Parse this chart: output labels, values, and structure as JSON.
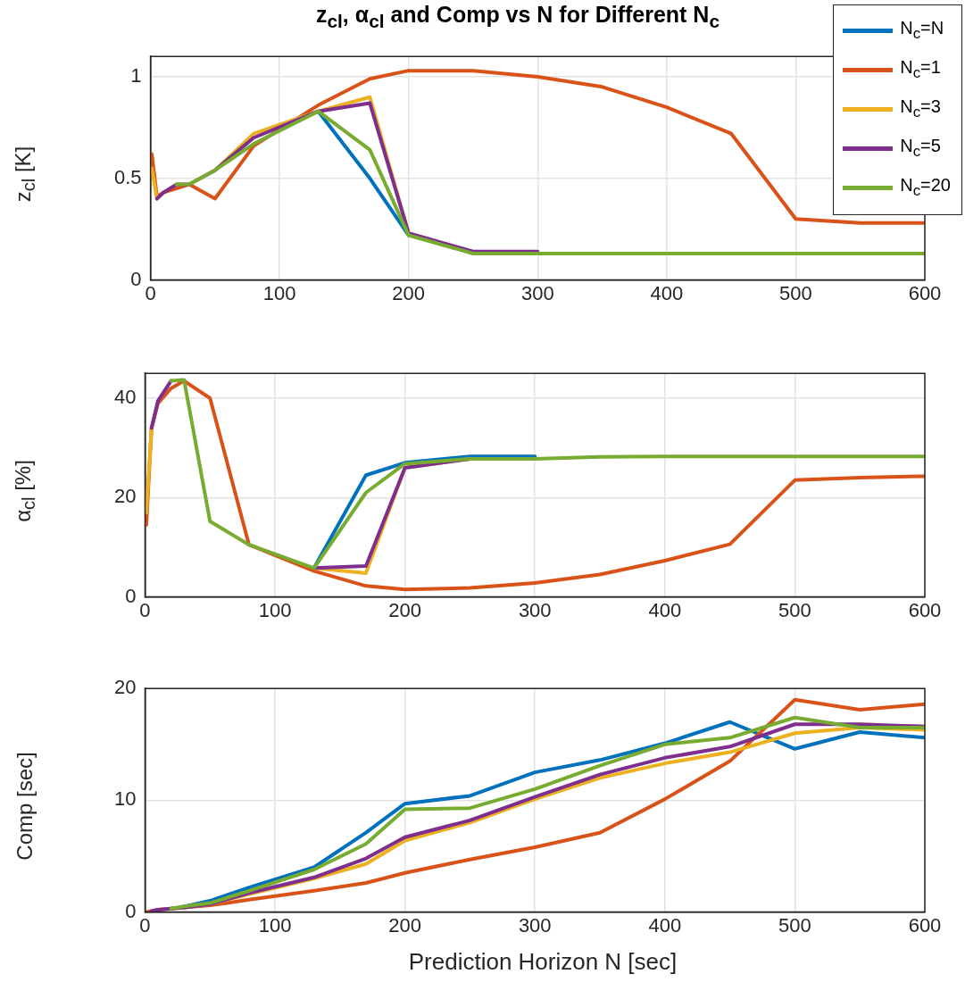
{
  "chart_data": [
    {
      "type": "line",
      "title": "z$_{cl}$, α$_{cl}$ and Comp vs N for Different N$_{c}$",
      "ylabel": "z$_{cl}$ [K]",
      "xlim": [
        0,
        600
      ],
      "xticks": [
        0,
        100,
        200,
        300,
        400,
        500,
        600
      ],
      "ylim": [
        0,
        1.1
      ],
      "yticks": [
        0,
        0.5,
        1
      ],
      "grid": true,
      "legend": "top right",
      "x": [
        1,
        5,
        10,
        20,
        30,
        50,
        80,
        130,
        170,
        200,
        250,
        300,
        350,
        400,
        450,
        500,
        550,
        600
      ],
      "series": [
        {
          "name": "N$_{c}$=N",
          "color": "#0072bd",
          "values": [
            null,
            null,
            null,
            null,
            null,
            null,
            null,
            0.83,
            0.5,
            0.22,
            null,
            null,
            null,
            null,
            null,
            null,
            null,
            null
          ]
        },
        {
          "name": "N$_{c}$=1",
          "color": "#d95319",
          "values": [
            0.62,
            0.41,
            0.43,
            0.45,
            0.47,
            0.4,
            0.66,
            0.86,
            0.99,
            1.03,
            1.03,
            1.0,
            0.95,
            0.85,
            0.72,
            0.3,
            0.28,
            0.28
          ]
        },
        {
          "name": "N$_{c}$=3",
          "color": "#edb120",
          "values": [
            0.55,
            0.4,
            0.43,
            null,
            null,
            0.54,
            0.72,
            0.83,
            0.9,
            0.23,
            null,
            null,
            null,
            null,
            null,
            null,
            null,
            null
          ]
        },
        {
          "name": "N$_{c}$=5",
          "color": "#7e2f8e",
          "values": [
            null,
            0.4,
            0.43,
            0.47,
            0.47,
            0.54,
            0.7,
            0.83,
            0.87,
            0.23,
            0.14,
            0.14,
            null,
            null,
            null,
            null,
            null,
            null
          ]
        },
        {
          "name": "N$_{c}$=20",
          "color": "#77ac30",
          "values": [
            null,
            null,
            null,
            0.47,
            0.47,
            0.54,
            0.67,
            0.83,
            0.64,
            0.22,
            0.13,
            0.13,
            0.13,
            0.13,
            0.13,
            0.13,
            0.13,
            0.13
          ]
        }
      ]
    },
    {
      "type": "line",
      "ylabel": "α$_{cl}$ [%]",
      "xlim": [
        0,
        600
      ],
      "xticks": [
        0,
        100,
        200,
        300,
        400,
        500,
        600
      ],
      "ylim": [
        0,
        45
      ],
      "yticks": [
        0,
        20,
        40
      ],
      "grid": true,
      "x": [
        1,
        5,
        10,
        20,
        30,
        50,
        80,
        130,
        170,
        200,
        250,
        300,
        350,
        400,
        450,
        500,
        550,
        600
      ],
      "series": [
        {
          "color": "#0072bd",
          "values": [
            null,
            null,
            null,
            null,
            null,
            null,
            null,
            5.8,
            24.5,
            27,
            28.3,
            28.3,
            null,
            null,
            null,
            null,
            null,
            null
          ]
        },
        {
          "color": "#d95319",
          "values": [
            14.5,
            34,
            39,
            42,
            43.5,
            40,
            10.5,
            5.2,
            2.2,
            1.5,
            1.8,
            2.8,
            4.5,
            7.3,
            10.6,
            23.5,
            24,
            24.3
          ]
        },
        {
          "color": "#edb120",
          "values": [
            17,
            34,
            null,
            null,
            null,
            null,
            null,
            5.8,
            4.8,
            26,
            27.8,
            27.8,
            null,
            null,
            null,
            null,
            null,
            null
          ]
        },
        {
          "color": "#7e2f8e",
          "values": [
            null,
            34,
            39.5,
            43.5,
            null,
            null,
            null,
            5.8,
            6.2,
            26,
            27.8,
            27.8,
            null,
            null,
            null,
            null,
            null,
            null
          ]
        },
        {
          "color": "#77ac30",
          "values": [
            null,
            null,
            null,
            43.5,
            43.7,
            15.2,
            10.5,
            5.8,
            21,
            26.8,
            27.8,
            27.8,
            28.2,
            28.3,
            28.3,
            28.3,
            28.3,
            28.3
          ]
        }
      ]
    },
    {
      "type": "line",
      "ylabel": "Comp [sec]",
      "xlabel": "Prediction Horizon N [sec]",
      "xlim": [
        0,
        600
      ],
      "xticks": [
        0,
        100,
        200,
        300,
        400,
        500,
        600
      ],
      "ylim": [
        0,
        20
      ],
      "yticks": [
        0,
        10,
        20
      ],
      "grid": true,
      "x": [
        1,
        5,
        10,
        20,
        30,
        50,
        80,
        130,
        170,
        200,
        250,
        300,
        350,
        400,
        450,
        500,
        550,
        600
      ],
      "series": [
        {
          "color": "#0072bd",
          "values": [
            null,
            null,
            null,
            null,
            0.5,
            1.0,
            2.2,
            4.0,
            7.1,
            9.7,
            10.4,
            12.5,
            13.6,
            15.1,
            17.0,
            14.6,
            16.1,
            15.6
          ]
        },
        {
          "color": "#d95319",
          "values": [
            0,
            0.1,
            0.2,
            0.3,
            0.4,
            0.6,
            1.1,
            1.9,
            2.6,
            3.5,
            4.7,
            5.8,
            7.1,
            10.1,
            13.5,
            19.0,
            18.1,
            18.6
          ]
        },
        {
          "color": "#edb120",
          "values": [
            null,
            null,
            null,
            null,
            0.4,
            0.7,
            1.6,
            3.0,
            4.3,
            6.4,
            8.0,
            10.1,
            12.0,
            13.3,
            14.3,
            16.0,
            16.5,
            16.3
          ]
        },
        {
          "color": "#7e2f8e",
          "values": [
            null,
            0.1,
            0.2,
            0.3,
            0.4,
            0.7,
            1.7,
            3.1,
            4.8,
            6.7,
            8.2,
            10.3,
            12.3,
            13.8,
            14.8,
            16.8,
            16.8,
            16.6
          ]
        },
        {
          "color": "#77ac30",
          "values": [
            null,
            null,
            null,
            0.3,
            0.5,
            0.8,
            1.9,
            3.8,
            6.1,
            9.2,
            9.3,
            11.0,
            13.1,
            15.0,
            15.6,
            17.4,
            16.5,
            16.5
          ]
        }
      ]
    }
  ]
}
